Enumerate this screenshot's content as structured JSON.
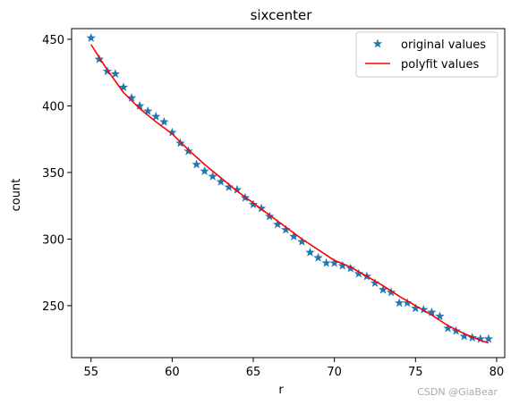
{
  "chart_data": {
    "type": "line",
    "title": "sixcenter",
    "xlabel": "r",
    "ylabel": "count",
    "xlim": [
      53.8,
      80.5
    ],
    "ylim": [
      211,
      458
    ],
    "xticks": [
      55,
      60,
      65,
      70,
      75,
      80
    ],
    "yticks": [
      250,
      300,
      350,
      400,
      450
    ],
    "grid": false,
    "legend_position": "top-right",
    "series": [
      {
        "name": "original values",
        "kind": "scatter",
        "marker": "star",
        "color": "#1f77b4",
        "x": [
          55.0,
          55.5,
          56.0,
          56.5,
          57.0,
          57.5,
          58.0,
          58.5,
          59.0,
          59.5,
          60.0,
          60.5,
          61.0,
          61.5,
          62.0,
          62.5,
          63.0,
          63.5,
          64.0,
          64.5,
          65.0,
          65.5,
          66.0,
          66.5,
          67.0,
          67.5,
          68.0,
          68.5,
          69.0,
          69.5,
          70.0,
          70.5,
          71.0,
          71.5,
          72.0,
          72.5,
          73.0,
          73.5,
          74.0,
          74.5,
          75.0,
          75.5,
          76.0,
          76.5,
          77.0,
          77.5,
          78.0,
          78.5,
          79.0,
          79.5
        ],
        "y": [
          451,
          435,
          426,
          424,
          414,
          406,
          400,
          396,
          392,
          388,
          380,
          372,
          366,
          356,
          351,
          347,
          343,
          339,
          337,
          331,
          326,
          323,
          317,
          311,
          307,
          302,
          298,
          290,
          286,
          282,
          282,
          280,
          278,
          274,
          272,
          267,
          262,
          260,
          252,
          252,
          248,
          247,
          245,
          242,
          233,
          231,
          227,
          226,
          225,
          225
        ]
      },
      {
        "name": "polyfit values",
        "kind": "line",
        "color": "#ff0000",
        "x": [
          55.0,
          56.0,
          57.0,
          58.0,
          59.0,
          60.0,
          61.0,
          62.0,
          63.0,
          64.0,
          65.0,
          66.0,
          67.0,
          68.0,
          69.0,
          70.0,
          71.0,
          72.0,
          73.0,
          74.0,
          75.0,
          76.0,
          77.0,
          78.0,
          79.0,
          79.5
        ],
        "y": [
          446,
          427,
          410,
          398,
          388,
          379,
          367,
          356,
          346,
          336,
          327,
          318,
          309,
          300,
          292,
          284,
          279,
          272,
          265,
          257,
          250,
          243,
          235,
          229,
          224,
          222
        ]
      }
    ]
  },
  "watermark": "CSDN @GiaBear"
}
